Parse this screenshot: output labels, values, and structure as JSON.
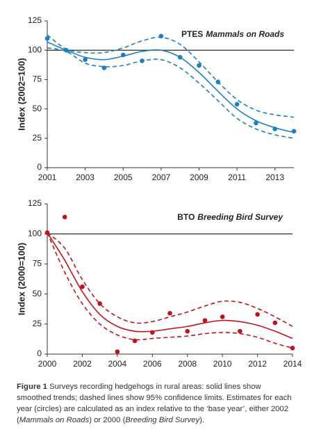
{
  "chart_data": [
    {
      "type": "line",
      "title": [
        "PTES",
        "Mammals on Roads"
      ],
      "y_label": "Index (2002=100)",
      "color": "#1c7fc4",
      "x": [
        2001,
        2002,
        2003,
        2004,
        2005,
        2006,
        2007,
        2008,
        2009,
        2010,
        2011,
        2012,
        2013,
        2014
      ],
      "points": [
        110,
        100,
        92,
        85,
        96,
        91,
        112,
        94,
        87,
        73,
        54,
        38,
        33,
        31
      ],
      "trend": [
        107,
        100,
        94,
        92,
        95,
        99,
        100,
        94,
        81,
        65,
        50,
        40,
        34,
        30
      ],
      "upper": [
        113,
        101,
        98,
        98,
        102,
        108,
        111,
        105,
        90,
        73,
        58,
        49,
        45,
        43
      ],
      "lower": [
        102,
        99,
        89,
        86,
        87,
        91,
        92,
        85,
        72,
        57,
        42,
        33,
        28,
        25
      ],
      "ref_line": 100,
      "xlim": [
        2001,
        2014
      ],
      "xticks": [
        2001,
        2003,
        2005,
        2007,
        2009,
        2011,
        2013
      ],
      "ylim": [
        0,
        125
      ],
      "yticks": [
        0,
        25,
        50,
        75,
        100,
        125
      ]
    },
    {
      "type": "line",
      "title": [
        "BTO",
        "Breeding Bird Survey"
      ],
      "y_label": "Index (2000=100)",
      "color": "#c1121c",
      "x": [
        2000,
        2001,
        2002,
        2003,
        2004,
        2005,
        2006,
        2007,
        2008,
        2009,
        2010,
        2011,
        2012,
        2013,
        2014
      ],
      "points": [
        101,
        114,
        56,
        42,
        2,
        11,
        18,
        34,
        19,
        28,
        31,
        19,
        33,
        26,
        5
      ],
      "trend": [
        101,
        78,
        52,
        33,
        23,
        19,
        19,
        21,
        23,
        26,
        28,
        27,
        24,
        19,
        13
      ],
      "upper": [
        101,
        88,
        62,
        42,
        31,
        26,
        27,
        31,
        35,
        40,
        44,
        43,
        38,
        31,
        23
      ],
      "lower": [
        101,
        68,
        42,
        25,
        16,
        12,
        13,
        14,
        15,
        17,
        18,
        17,
        14,
        9,
        5
      ],
      "ref_line": 100,
      "xlim": [
        2000,
        2014
      ],
      "xticks": [
        2000,
        2002,
        2004,
        2006,
        2008,
        2010,
        2012,
        2014
      ],
      "ylim": [
        0,
        125
      ],
      "yticks": [
        0,
        25,
        50,
        75,
        100,
        125
      ]
    }
  ],
  "caption": {
    "label": "Figure 1",
    "parts": [
      {
        "text": "Surveys recording hedgehogs in rural areas: solid lines show smoothed trends; dashed lines show 95% confidence limits. Estimates for each year (circles) are calculated as an index relative to the ‘base year’, either 2002 (",
        "italic": false
      },
      {
        "text": "Mammals on Roads",
        "italic": true
      },
      {
        "text": ") or 2000 (",
        "italic": false
      },
      {
        "text": "Breeding Bird Survey",
        "italic": true
      },
      {
        "text": ").",
        "italic": false
      }
    ]
  }
}
